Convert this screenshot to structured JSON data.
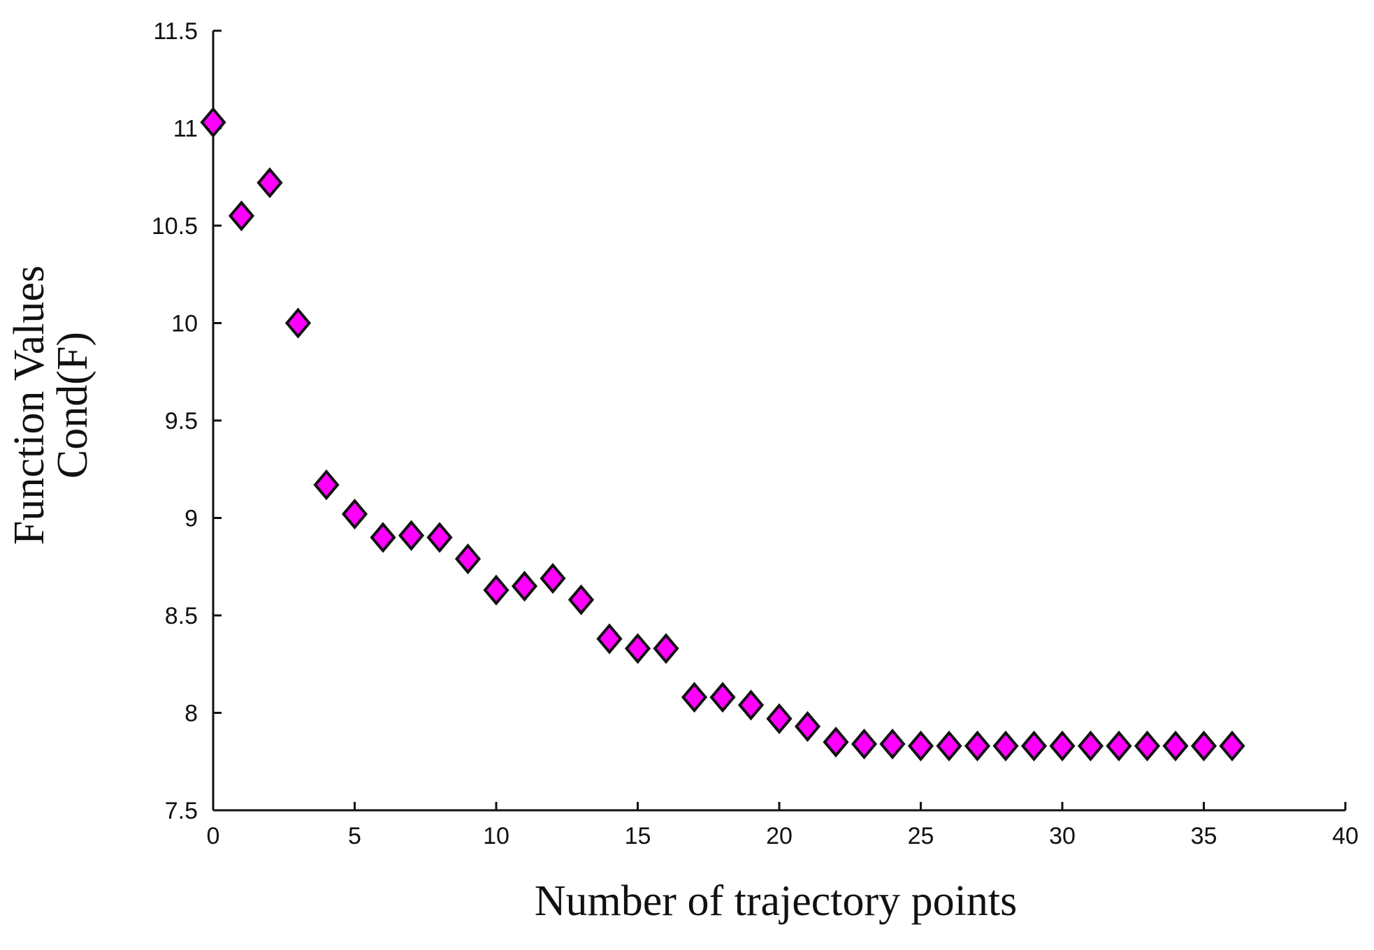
{
  "chart_data": {
    "type": "scatter",
    "title": "",
    "xlabel": "Number of trajectory points",
    "ylabel_lines": [
      "Function Values",
      "Cond(F)"
    ],
    "xlim": [
      0,
      40
    ],
    "ylim": [
      7.5,
      11.5
    ],
    "xticks": [
      0,
      5,
      10,
      15,
      20,
      25,
      30,
      35,
      40
    ],
    "yticks": [
      7.5,
      8,
      8.5,
      9,
      9.5,
      10,
      10.5,
      11,
      11.5
    ],
    "xtick_labels": [
      "0",
      "5",
      "10",
      "15",
      "20",
      "25",
      "30",
      "35",
      "40"
    ],
    "ytick_labels": [
      "7.5",
      "8",
      "8.5",
      "9",
      "9.5",
      "10",
      "10.5",
      "11",
      "11.5"
    ],
    "grid": false,
    "marker": "diamond",
    "marker_color": "#ff00ff",
    "marker_edge_color": "#111111",
    "x": [
      0,
      1,
      2,
      3,
      4,
      5,
      6,
      7,
      8,
      9,
      10,
      11,
      12,
      13,
      14,
      15,
      16,
      17,
      18,
      19,
      20,
      21,
      22,
      23,
      24,
      25,
      26,
      27,
      28,
      29,
      30,
      31,
      32,
      33,
      34,
      35,
      36
    ],
    "y": [
      11.03,
      10.55,
      10.72,
      10.0,
      9.17,
      9.02,
      8.9,
      8.91,
      8.9,
      8.79,
      8.63,
      8.65,
      8.69,
      8.58,
      8.38,
      8.33,
      8.33,
      8.08,
      8.08,
      8.04,
      7.97,
      7.93,
      7.85,
      7.84,
      7.84,
      7.83,
      7.83,
      7.83,
      7.83,
      7.83,
      7.83,
      7.83,
      7.83,
      7.83,
      7.83,
      7.83,
      7.83
    ]
  }
}
